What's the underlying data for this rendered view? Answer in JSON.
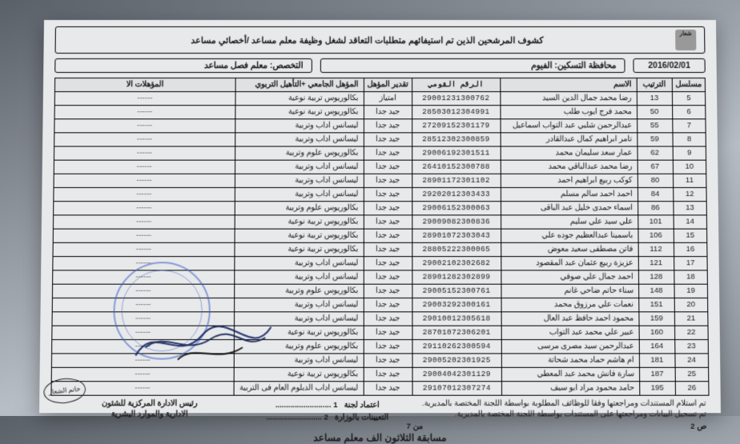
{
  "header": {
    "title": "كشوف المرشحين الذين تم استيفائهم متطلبات التعاقد لشغل وظيفة معلم مساعد /أخصائي مساعد",
    "date": "2016/02/01",
    "governorate_label": "محافظة التسكين:",
    "governorate": "الفيوم",
    "spec_label": "التخصص:",
    "spec": "معلم فصل مساعد"
  },
  "columns": {
    "serial": "مسلسل",
    "rank": "الترتيب",
    "name": "الاسم",
    "nid": "الرقم القومي",
    "grade": "تقدير المؤهل",
    "qual": "المؤهل الجامعي +التأهيل التربوي",
    "extra": "المؤهلات الا"
  },
  "rows": [
    {
      "s": 5,
      "r": 13,
      "name": "رضا محمد جمال الدين السيد",
      "nid": "29001231300762",
      "g": "امتياز",
      "q": "بكالوريوس تربية نوعية",
      "e": "------"
    },
    {
      "s": 6,
      "r": 50,
      "name": "محمد فرج ايوب طلب",
      "nid": "28503012304991",
      "g": "جيد جدا",
      "q": "بكالوريوس تربية نوعية",
      "e": "------"
    },
    {
      "s": 7,
      "r": 55,
      "name": "عبدالرحمن شلبي عبد التواب اسماعيل",
      "nid": "27209152301179",
      "g": "جيد جدا",
      "q": "ليسانس اداب وتربية",
      "e": "------"
    },
    {
      "s": 8,
      "r": 59,
      "name": "تامر ابراهيم كمال عبدالقادر",
      "nid": "28512302300859",
      "g": "جيد جدا",
      "q": "ليسانس اداب وتربية",
      "e": "------"
    },
    {
      "s": 9,
      "r": 62,
      "name": "عمار سعد سليمان محمد",
      "nid": "29006192301511",
      "g": "جيد جدا",
      "q": "بكالوريوس علوم وتربية",
      "e": "------"
    },
    {
      "s": 10,
      "r": 67,
      "name": "رضا محمد عبدالباقي محمد",
      "nid": "26410152300788",
      "g": "جيد جدا",
      "q": "ليسانس اداب وتربية",
      "e": "------"
    },
    {
      "s": 11,
      "r": 80,
      "name": "كوكب ربيع ابراهيم احمد",
      "nid": "28901172301102",
      "g": "جيد جدا",
      "q": "ليسانس اداب وتربية",
      "e": "------"
    },
    {
      "s": 12,
      "r": 84,
      "name": "احمد احمد سالم مسلم",
      "nid": "29202012303433",
      "g": "جيد جدا",
      "q": "ليسانس اداب وتربية",
      "e": "------"
    },
    {
      "s": 13,
      "r": 86,
      "name": "اسماء حمدى خليل عبد الباقى",
      "nid": "29006152300063",
      "g": "جيد جدا",
      "q": "بكالوريوس علوم وتربية",
      "e": "------"
    },
    {
      "s": 14,
      "r": 101,
      "name": "علي سيد علي سليم",
      "nid": "29009082300836",
      "g": "جيد جدا",
      "q": "بكالوريوس تربية نوعية",
      "e": "------"
    },
    {
      "s": 15,
      "r": 106,
      "name": "باسمينا عبدالعظيم جوده علي",
      "nid": "28901072303043",
      "g": "جيد جدا",
      "q": "بكالوريوس تربية نوعية",
      "e": "------"
    },
    {
      "s": 16,
      "r": 112,
      "name": "فاتن مصطفى سعيد معوض",
      "nid": "28805222300065",
      "g": "جيد جدا",
      "q": "بكالوريوس تربية نوعية",
      "e": "------"
    },
    {
      "s": 17,
      "r": 121,
      "name": "عزيزة ربيع عثمان عبد المقصود",
      "nid": "29002102302682",
      "g": "جيد جدا",
      "q": "ليسانس اداب وتربية",
      "e": "------"
    },
    {
      "s": 18,
      "r": 128,
      "name": "احمد جمال علي صوفي",
      "nid": "28901282302899",
      "g": "جيد جدا",
      "q": "ليسانس اداب وتربية",
      "e": "------"
    },
    {
      "s": 19,
      "r": 148,
      "name": "سناء حاتم ضاحي غانم",
      "nid": "29005152300761",
      "g": "جيد جدا",
      "q": "بكالوريوس علوم وتربية",
      "e": "------"
    },
    {
      "s": 20,
      "r": 151,
      "name": "نعمات علي مرزوق محمد",
      "nid": "29003292300161",
      "g": "جيد جدا",
      "q": "ليسانس اداب وتربية",
      "e": "------"
    },
    {
      "s": 21,
      "r": 159,
      "name": "محمود احمد حافظ عبد العال",
      "nid": "29010012305618",
      "g": "جيد جدا",
      "q": "ليسانس اداب وتربية",
      "e": "------"
    },
    {
      "s": 22,
      "r": 160,
      "name": "عبير علي محمد عبد التواب",
      "nid": "28701072306201",
      "g": "جيد جدا",
      "q": "بكالوريوس تربية نوعية",
      "e": "------"
    },
    {
      "s": 23,
      "r": 164,
      "name": "عبدالرحمن سيد مصرى مرسى",
      "nid": "29110262300594",
      "g": "جيد جدا",
      "q": "بكالوريوس علوم وتربية",
      "e": "------"
    },
    {
      "s": 24,
      "r": 181,
      "name": "ام هاشم حماد محمد شحاتة",
      "nid": "29005202301925",
      "g": "جيد جدا",
      "q": "ليسانس اداب وتربية",
      "e": "------"
    },
    {
      "s": 25,
      "r": 187,
      "name": "سارة فانش محمد عبد المعطي",
      "nid": "29004042301129",
      "g": "جيد جدا",
      "q": "بكالوريوس تربية نوعية",
      "e": "------"
    },
    {
      "s": 26,
      "r": 195,
      "name": "حامد محمود مراد ابو سيف",
      "nid": "29107012307274",
      "g": "جيد جدا",
      "q": "ليسانس اداب  الدبلوم العام فى التربية",
      "e": "------"
    }
  ],
  "footer": {
    "note1": "تم استلام المستندات ومراجعتها وفقا للوظائف المطلوبة بواسطة اللجنة المختصة بالمديرية.",
    "note2": "تم تسجيل البيانات ومراجعتها على المستندات بواسطة اللجنة المختصة بالمديرية.",
    "page_right": "ص 2",
    "page_left": "من 7",
    "approval_label": "اعتماد لجنة",
    "approval1": "1 ..........................",
    "approval_sub": "التعيينات بالوزارة",
    "approval2": "2 ..........................",
    "head_label": "رئيس الادارة المركزية للشئون",
    "head_sub": "الادارية والموارد البشرية",
    "contest": "مسابقة الثلاثون الف معلم مساعد",
    "stamp_label": "خاتم الشعار"
  }
}
